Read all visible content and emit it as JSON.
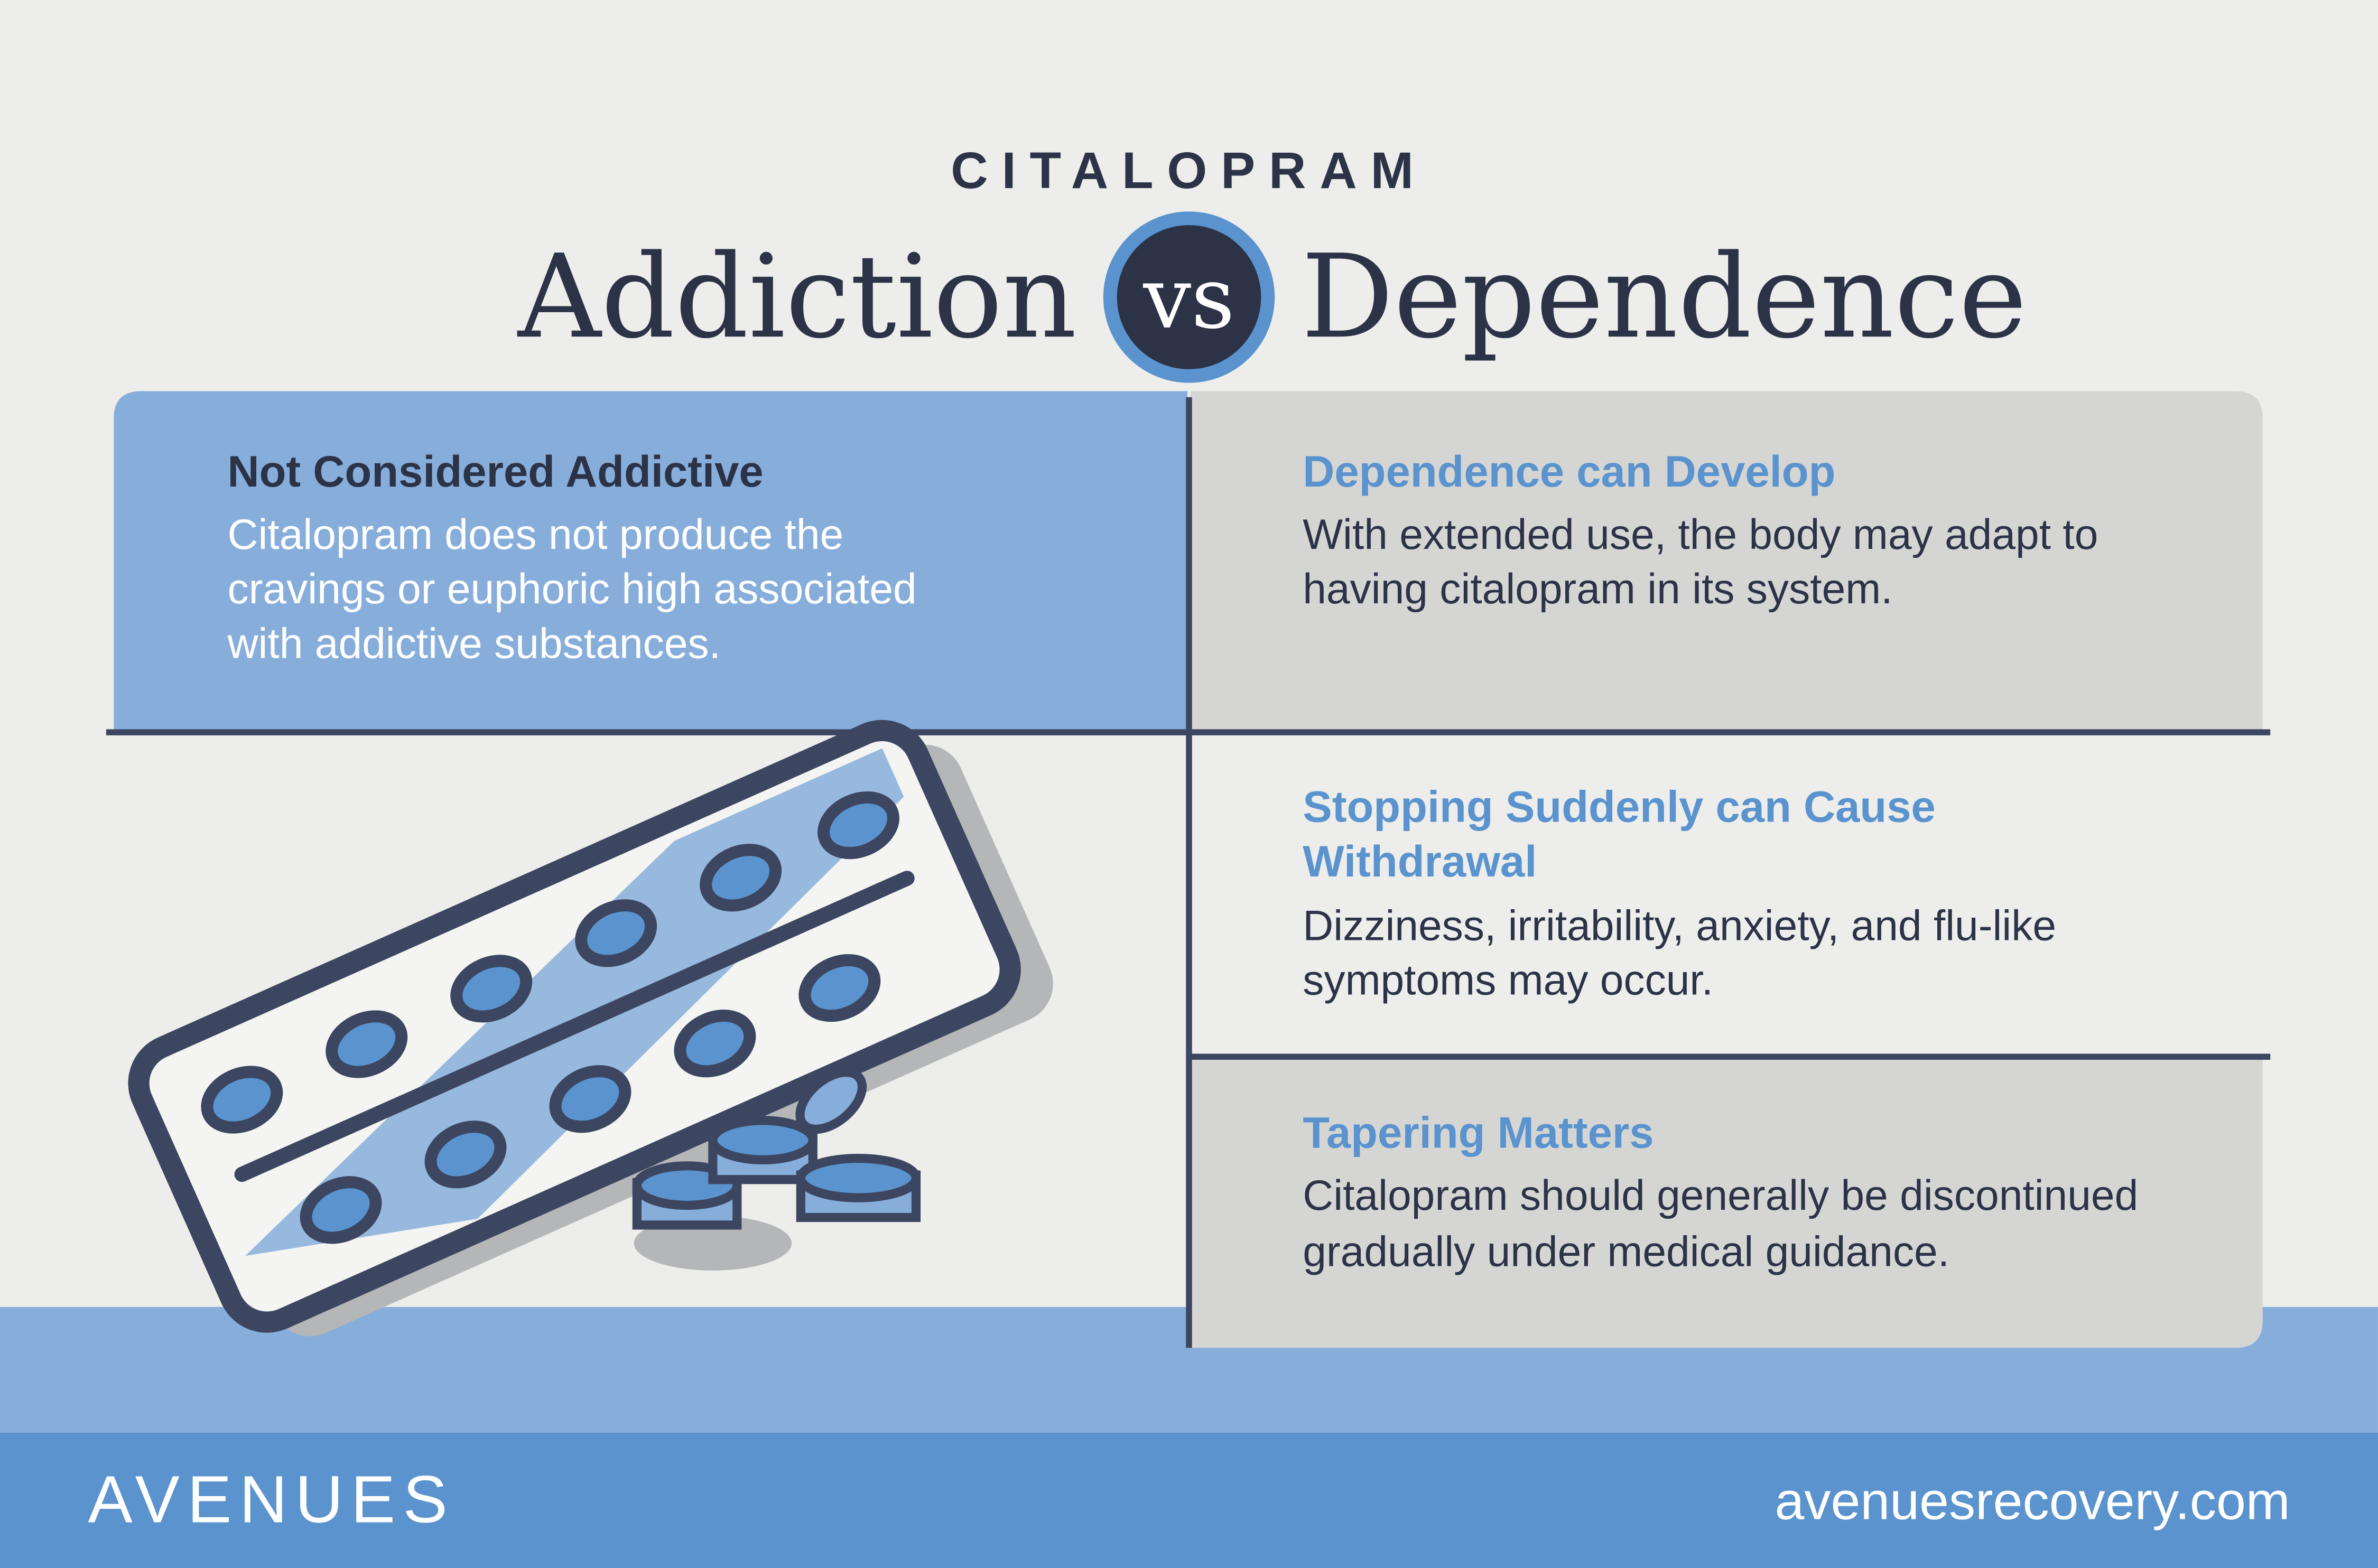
{
  "header": {
    "eyebrow": "CITALOPRAM",
    "left": "Addiction",
    "vs": "vs",
    "right": "Dependence"
  },
  "panels": [
    {
      "title": "Not Considered Addictive",
      "lines": [
        "Citalopram does not produce the",
        "cravings or euphoric high associated",
        "with addictive substances."
      ]
    },
    {
      "title": "Dependence can Develop",
      "lines": [
        "With extended use, the body may adapt to",
        "having citalopram in its system."
      ]
    },
    {
      "title": [
        "Stopping Suddenly can Cause",
        "Withdrawal"
      ],
      "lines": [
        "Dizziness, irritability, anxiety, and flu-like",
        "symptoms may occur."
      ]
    },
    {
      "title": "Tapering Matters",
      "lines": [
        "Citalopram should generally be discontinued",
        "gradually under medical guidance."
      ]
    }
  ],
  "footer": {
    "brand": "AVENUES",
    "url": "avenuesrecovery.com"
  }
}
